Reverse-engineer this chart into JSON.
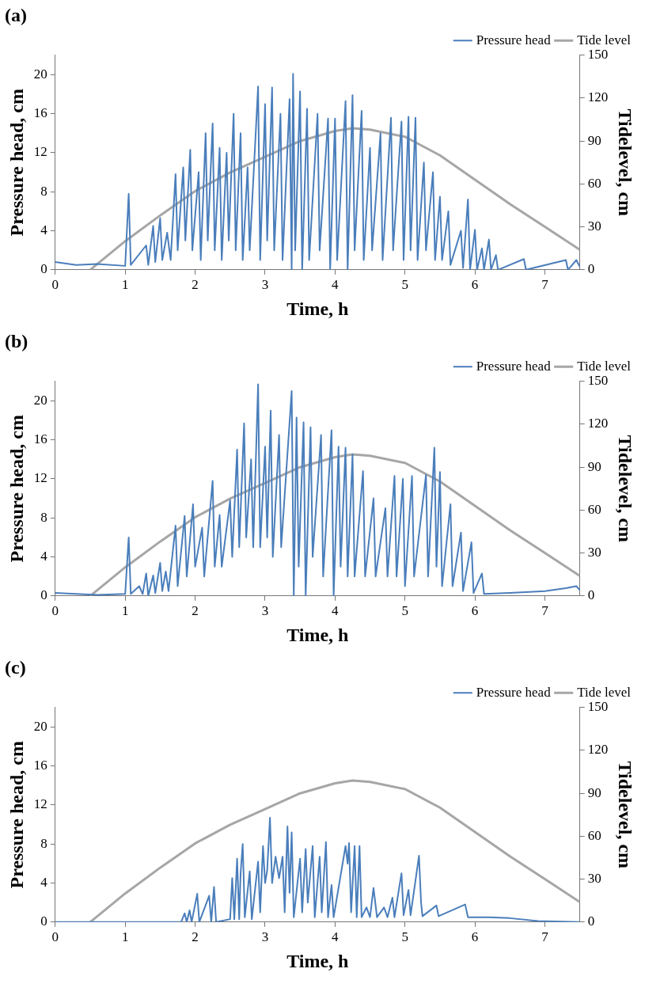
{
  "chart_data": [
    {
      "type": "line",
      "title": "(a)",
      "xlabel": "Time, h",
      "ylabel": "Pressure head, cm",
      "y2label": "Tidelevel, cm",
      "xlim": [
        0,
        7.5
      ],
      "xticks": [
        0,
        1,
        2,
        3,
        4,
        5,
        6,
        7
      ],
      "ylim": [
        0,
        22
      ],
      "yticks": [
        0,
        4,
        8,
        12,
        16,
        20
      ],
      "y2lim": [
        0,
        150
      ],
      "y2ticks": [
        0,
        30,
        60,
        90,
        120,
        150
      ],
      "legend": "top right",
      "marker": "none",
      "line_style": "solid",
      "grid": false,
      "series": [
        {
          "name": "Pressure head",
          "color": "#4a7ebb",
          "x": [
            0,
            0.3,
            0.6,
            1.0,
            1.05,
            1.08,
            1.3,
            1.33,
            1.4,
            1.43,
            1.5,
            1.53,
            1.6,
            1.65,
            1.72,
            1.75,
            1.83,
            1.86,
            1.93,
            1.96,
            2.05,
            2.08,
            2.15,
            2.18,
            2.25,
            2.28,
            2.35,
            2.38,
            2.45,
            2.48,
            2.55,
            2.58,
            2.65,
            2.68,
            2.75,
            2.78,
            2.9,
            2.93,
            3.0,
            3.03,
            3.1,
            3.13,
            3.22,
            3.25,
            3.35,
            3.38,
            3.4,
            3.43,
            3.5,
            3.53,
            3.6,
            3.63,
            3.75,
            3.78,
            3.9,
            3.93,
            4.0,
            4.03,
            4.15,
            4.18,
            4.25,
            4.28,
            4.38,
            4.41,
            4.5,
            4.53,
            4.65,
            4.68,
            4.8,
            4.83,
            4.95,
            4.98,
            5.05,
            5.08,
            5.15,
            5.18,
            5.27,
            5.3,
            5.4,
            5.43,
            5.5,
            5.53,
            5.62,
            5.65,
            5.8,
            5.83,
            5.9,
            5.93,
            6.0,
            6.03,
            6.1,
            6.13,
            6.2,
            6.23,
            6.3,
            6.33,
            6.7,
            6.73,
            7.3,
            7.33,
            7.45,
            7.5
          ],
          "values": [
            0.8,
            0.5,
            0.6,
            0.4,
            7.8,
            0.5,
            2.5,
            0.5,
            4.5,
            0.8,
            5.3,
            1,
            3.8,
            1,
            9.8,
            2,
            10.5,
            3,
            12.3,
            2,
            10,
            1,
            14,
            3,
            15,
            2,
            12.5,
            1,
            12,
            3,
            16,
            2,
            14,
            1,
            10.5,
            2,
            18.8,
            1,
            17,
            3,
            18.7,
            2,
            16,
            1,
            17.5,
            0,
            20.1,
            2,
            18.3,
            0,
            16.5,
            1,
            16,
            2,
            15.5,
            0,
            15.5,
            1,
            17.3,
            0,
            17.9,
            2,
            16.3,
            1,
            12.5,
            2,
            14,
            1,
            15.6,
            2,
            15.2,
            1,
            15.7,
            2,
            15.6,
            1,
            11,
            2,
            10,
            1,
            7.5,
            1,
            6,
            0.5,
            4,
            0.2,
            7.2,
            0,
            4.1,
            0,
            2.2,
            0,
            3.1,
            0,
            1.5,
            0,
            1.1,
            0,
            1.0,
            0,
            1.0,
            0.3
          ]
        },
        {
          "name": "Tide level",
          "color": "#a6a6a6",
          "axis": "y2",
          "x": [
            0.5,
            1,
            1.5,
            2,
            2.5,
            3,
            3.5,
            4,
            4.25,
            4.5,
            5,
            5.5,
            6,
            6.5,
            7,
            7.5
          ],
          "values": [
            0,
            20,
            38,
            55,
            68,
            79,
            90,
            97,
            99,
            98,
            93,
            80,
            63,
            46,
            30,
            14
          ]
        }
      ]
    },
    {
      "type": "line",
      "title": "(b)",
      "xlabel": "Time, h",
      "ylabel": "Pressure head, cm",
      "y2label": "Tidelevel, cm",
      "xlim": [
        0,
        7.5
      ],
      "xticks": [
        0,
        1,
        2,
        3,
        4,
        5,
        6,
        7
      ],
      "ylim": [
        0,
        22
      ],
      "yticks": [
        0,
        4,
        8,
        12,
        16,
        20
      ],
      "y2lim": [
        0,
        150
      ],
      "y2ticks": [
        0,
        30,
        60,
        90,
        120,
        150
      ],
      "legend": "top right",
      "marker": "none",
      "line_style": "solid",
      "grid": false,
      "series": [
        {
          "name": "Pressure head",
          "color": "#4a7ebb",
          "x": [
            0,
            0.3,
            0.6,
            1.0,
            1.05,
            1.08,
            1.2,
            1.25,
            1.3,
            1.33,
            1.4,
            1.43,
            1.5,
            1.53,
            1.58,
            1.62,
            1.72,
            1.75,
            1.85,
            1.88,
            1.97,
            2.0,
            2.1,
            2.13,
            2.25,
            2.28,
            2.35,
            2.38,
            2.5,
            2.53,
            2.6,
            2.63,
            2.7,
            2.73,
            2.8,
            2.83,
            2.9,
            2.93,
            3.0,
            3.03,
            3.08,
            3.11,
            3.2,
            3.23,
            3.38,
            3.41,
            3.45,
            3.48,
            3.55,
            3.58,
            3.65,
            3.68,
            3.8,
            3.83,
            3.95,
            3.98,
            4.05,
            4.08,
            4.15,
            4.18,
            4.25,
            4.28,
            4.4,
            4.43,
            4.55,
            4.58,
            4.72,
            4.75,
            4.85,
            4.88,
            4.97,
            5.0,
            5.1,
            5.13,
            5.3,
            5.33,
            5.42,
            5.45,
            5.5,
            5.53,
            5.65,
            5.68,
            5.8,
            5.83,
            5.95,
            5.98,
            6.1,
            6.13,
            6.5,
            7.0,
            7.3,
            7.45,
            7.5
          ],
          "values": [
            0.3,
            0.2,
            0.1,
            0.2,
            6,
            0.2,
            1,
            0.2,
            2.3,
            0,
            2.1,
            0.3,
            3.4,
            0.5,
            2.5,
            0.5,
            7.2,
            1,
            8.2,
            2,
            9.4,
            3,
            7,
            2,
            11.8,
            3,
            8.3,
            3,
            9.8,
            4,
            15,
            5,
            17.7,
            6,
            14,
            5,
            21.7,
            5,
            15.3,
            6,
            19,
            4,
            16.5,
            5,
            21,
            0,
            18.3,
            3,
            17.8,
            0,
            17.3,
            4,
            16.5,
            2,
            17,
            0,
            15.3,
            3,
            15.2,
            2,
            14.5,
            2,
            12.8,
            2,
            10,
            2,
            9,
            2,
            12.3,
            2,
            12,
            1,
            12.3,
            2,
            12.4,
            2,
            15.2,
            3,
            12.7,
            1,
            9.4,
            1,
            6.5,
            0.5,
            5.5,
            0.3,
            2.3,
            0.2,
            0.3,
            0.5,
            0.8,
            1.0,
            0.6
          ]
        },
        {
          "name": "Tide level",
          "color": "#a6a6a6",
          "axis": "y2",
          "x": [
            0.5,
            1,
            1.5,
            2,
            2.5,
            3,
            3.5,
            4,
            4.25,
            4.5,
            5,
            5.5,
            6,
            6.5,
            7,
            7.5
          ],
          "values": [
            0,
            20,
            38,
            55,
            68,
            79,
            90,
            97,
            99,
            98,
            93,
            80,
            63,
            46,
            30,
            14
          ]
        }
      ]
    },
    {
      "type": "line",
      "title": "(c)",
      "xlabel": "Time, h",
      "ylabel": "Pressure head, cm",
      "y2label": "Tidelevel, cm",
      "xlim": [
        0,
        7.5
      ],
      "xticks": [
        0,
        1,
        2,
        3,
        4,
        5,
        6,
        7
      ],
      "ylim": [
        0,
        22
      ],
      "yticks": [
        0,
        4,
        8,
        12,
        16,
        20
      ],
      "y2lim": [
        0,
        150
      ],
      "y2ticks": [
        0,
        30,
        60,
        90,
        120,
        150
      ],
      "legend": "top right",
      "marker": "none",
      "line_style": "solid",
      "grid": false,
      "series": [
        {
          "name": "Pressure head",
          "color": "#4a7ebb",
          "x": [
            0,
            1.8,
            1.85,
            1.88,
            1.92,
            1.95,
            2.03,
            2.06,
            2.2,
            2.23,
            2.27,
            2.3,
            2.5,
            2.53,
            2.56,
            2.6,
            2.63,
            2.65,
            2.68,
            2.71,
            2.78,
            2.81,
            2.9,
            2.93,
            2.97,
            3.0,
            3.03,
            3.07,
            3.1,
            3.15,
            3.2,
            3.25,
            3.28,
            3.32,
            3.35,
            3.38,
            3.41,
            3.5,
            3.53,
            3.58,
            3.61,
            3.68,
            3.71,
            3.78,
            3.81,
            3.87,
            3.9,
            3.95,
            3.98,
            4.15,
            4.18,
            4.2,
            4.23,
            4.28,
            4.31,
            4.35,
            4.38,
            4.45,
            4.5,
            4.55,
            4.6,
            4.7,
            4.75,
            4.82,
            4.85,
            4.95,
            4.98,
            5.05,
            5.08,
            5.2,
            5.23,
            5.25,
            5.45,
            5.48,
            5.86,
            5.9,
            6.2,
            6.5,
            6.9,
            7.5
          ],
          "values": [
            0,
            0,
            0.9,
            0,
            1.2,
            0,
            2.9,
            0,
            2.7,
            0,
            3.6,
            0,
            0.3,
            4.5,
            0.3,
            6.5,
            0.3,
            5,
            8,
            0.5,
            5.2,
            0.3,
            6.2,
            1,
            7.8,
            4,
            5.3,
            10.7,
            4,
            6.7,
            4.5,
            6.7,
            1,
            9.8,
            3,
            9.2,
            0.5,
            6.5,
            1,
            7.5,
            2,
            7.8,
            0.5,
            6.7,
            1,
            8.2,
            0.5,
            3.8,
            0.5,
            7.8,
            6,
            8.1,
            1,
            7.8,
            0.5,
            7.8,
            0.5,
            1.5,
            0.5,
            3.5,
            0.5,
            1.5,
            0.5,
            2.5,
            0.5,
            5,
            0.7,
            3.3,
            0.7,
            6.8,
            2,
            0.6,
            1.7,
            0.6,
            1.8,
            0.5,
            0.5,
            0.4,
            0.1,
            0
          ]
        },
        {
          "name": "Tide level",
          "color": "#a6a6a6",
          "axis": "y2",
          "x": [
            0.5,
            1,
            1.5,
            2,
            2.5,
            3,
            3.5,
            4,
            4.25,
            4.5,
            5,
            5.5,
            6,
            6.5,
            7,
            7.5
          ],
          "values": [
            0,
            20,
            38,
            55,
            68,
            79,
            90,
            97,
            99,
            98,
            93,
            80,
            63,
            46,
            30,
            14
          ]
        }
      ]
    }
  ]
}
